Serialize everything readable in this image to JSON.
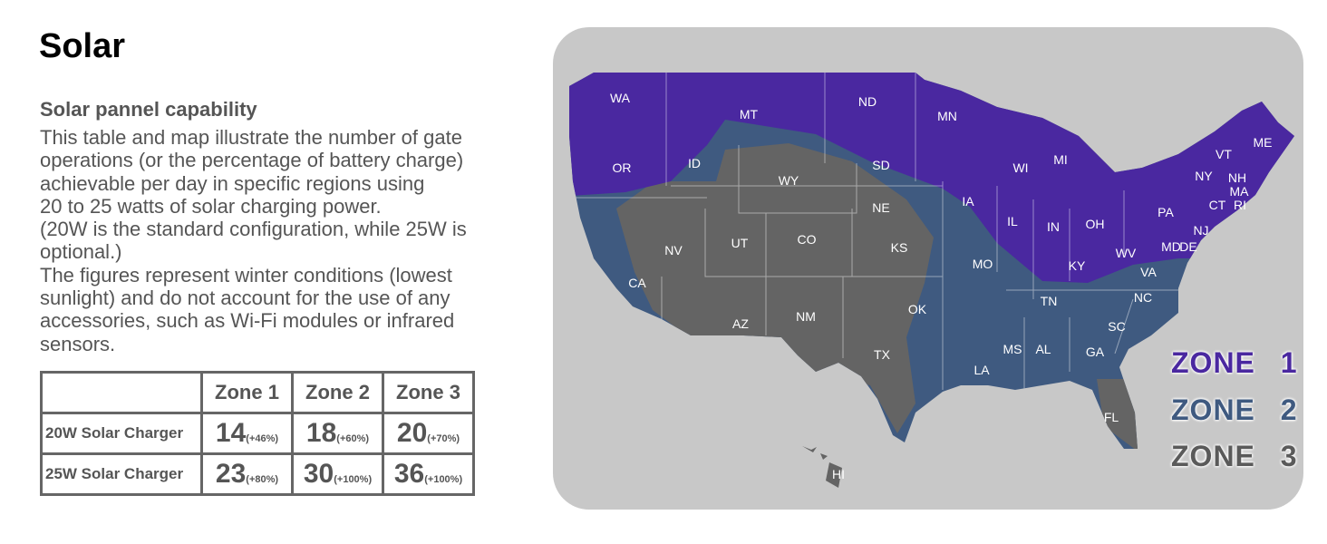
{
  "title": "Solar",
  "subtitle": "Solar pannel capability",
  "description": "This table and map illustrate the number of gate operations (or the percentage of battery charge) achievable per day in specific regions using\n20 to 25 watts of solar charging power.\n(20W is the standard configuration, while 25W is optional.)\nThe figures represent winter conditions (lowest sunlight) and do not account for the use of any accessories, such as Wi-Fi modules or infrared sensors.",
  "table": {
    "headers": [
      "Zone 1",
      "Zone 2",
      "Zone 3"
    ],
    "rows": [
      {
        "label": "20W Solar Charger",
        "cells": [
          {
            "value": "14",
            "pct": "(+46%)"
          },
          {
            "value": "18",
            "pct": "(+60%)"
          },
          {
            "value": "20",
            "pct": "(+70%)"
          }
        ]
      },
      {
        "label": "25W Solar Charger",
        "cells": [
          {
            "value": "23",
            "pct": "(+80%)"
          },
          {
            "value": "30",
            "pct": "(+100%)"
          },
          {
            "value": "36",
            "pct": "(+100%)"
          }
        ]
      }
    ]
  },
  "map": {
    "colors": {
      "zone1": "#4a28a0",
      "zone2": "#3f5a80",
      "zone3": "#646464",
      "background": "#c8c8c8"
    },
    "legend": [
      "ZONE 1",
      "ZONE 2",
      "ZONE 3"
    ],
    "states": [
      "WA",
      "MT",
      "ND",
      "MN",
      "OR",
      "ID",
      "WY",
      "SD",
      "WI",
      "MI",
      "NY",
      "VT",
      "NH",
      "ME",
      "MA",
      "CT",
      "RI",
      "NV",
      "UT",
      "CO",
      "NE",
      "KS",
      "IA",
      "IL",
      "IN",
      "OH",
      "PA",
      "NJ",
      "MD",
      "DE",
      "WV",
      "VA",
      "KY",
      "MO",
      "CA",
      "OK",
      "TN",
      "NC",
      "SC",
      "AZ",
      "NM",
      "TX",
      "MS",
      "AL",
      "GA",
      "LA",
      "FL",
      "HI"
    ]
  }
}
